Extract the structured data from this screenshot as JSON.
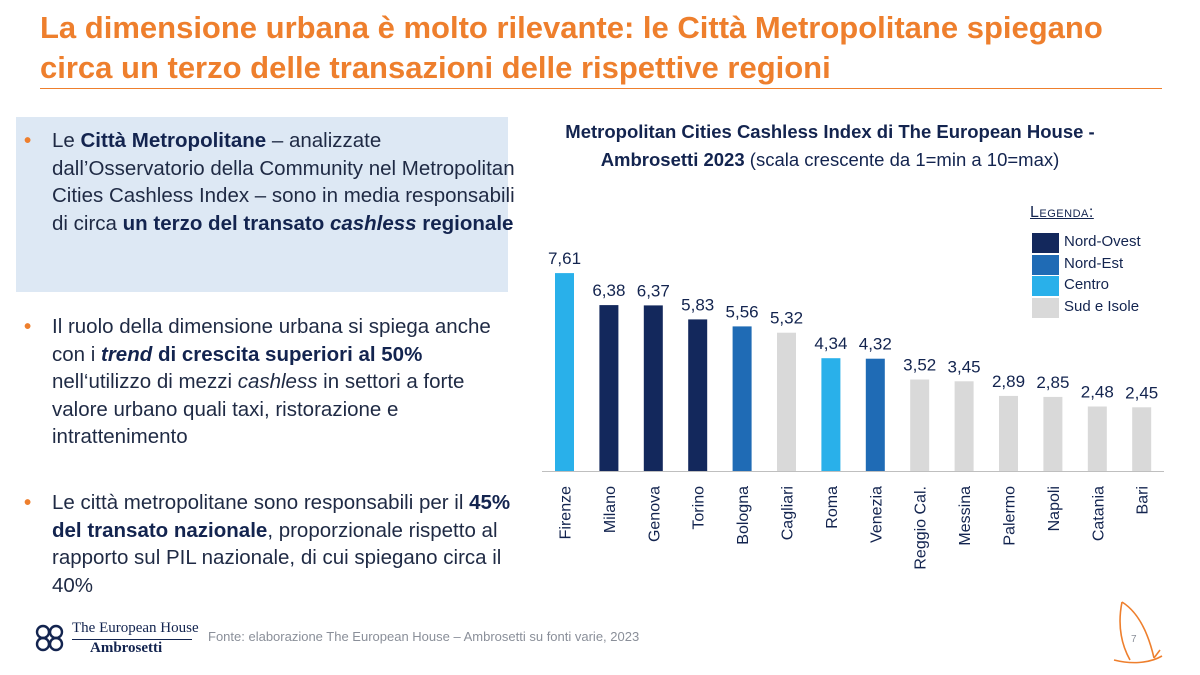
{
  "title": "La dimensione urbana è molto rilevante: le Città Metropolitane spiegano circa un terzo delle transazioni delle rispettive regioni",
  "bullets": {
    "b1": {
      "p1": "Le ",
      "p2": "Città Metropolitane",
      "p3": " – analizzate dall’Osservatorio della Community nel Metropolitan Cities Cashless Index – sono in media responsabili di circa ",
      "p4": "un terzo del transato ",
      "p5": "cashless",
      "p6": " regionale"
    },
    "b2": {
      "p1": "Il ruolo della dimensione urbana si spiega anche con i ",
      "p2": "trend",
      "p3": " di crescita superiori al 50%",
      "p4": " nell‘utilizzo di mezzi ",
      "p5": "cashless",
      "p6": " in settori a forte valore urbano quali taxi, ristorazione e intrattenimento"
    },
    "b3": {
      "p1": "Le città metropolitane sono responsabili per il ",
      "p2": "45% del transato nazionale",
      "p3": ", proporzionale rispetto al rapporto sul PIL nazionale, di cui spiegano circa il 40%"
    }
  },
  "chart_data": {
    "type": "bar",
    "title": "Metropolitan Cities Cashless Index di The European House - Ambrosetti 2023",
    "subtitle": "(scala crescente da 1=min a 10=max)",
    "categories": [
      "Firenze",
      "Milano",
      "Genova",
      "Torino",
      "Bologna",
      "Cagliari",
      "Roma",
      "Venezia",
      "Reggio Cal.",
      "Messina",
      "Palermo",
      "Napoli",
      "Catania",
      "Bari"
    ],
    "values": [
      7.61,
      6.38,
      6.37,
      5.83,
      5.56,
      5.32,
      4.34,
      4.32,
      3.52,
      3.45,
      2.89,
      2.85,
      2.48,
      2.45
    ],
    "value_labels": [
      "7,61",
      "6,38",
      "6,37",
      "5,83",
      "5,56",
      "5,32",
      "4,34",
      "4,32",
      "3,52",
      "3,45",
      "2,89",
      "2,85",
      "2,48",
      "2,45"
    ],
    "groups": [
      "Centro",
      "Nord-Ovest",
      "Nord-Ovest",
      "Nord-Ovest",
      "Nord-Est",
      "Sud e Isole",
      "Centro",
      "Nord-Est",
      "Sud e Isole",
      "Sud e Isole",
      "Sud e Isole",
      "Sud e Isole",
      "Sud e Isole",
      "Sud e Isole"
    ],
    "ylim": [
      0,
      10
    ],
    "grid": false,
    "legend": {
      "title": "Legenda:",
      "placement": "top-right",
      "items": [
        {
          "name": "Nord-Ovest",
          "color": "#13285c"
        },
        {
          "name": "Nord-Est",
          "color": "#1f6bb5"
        },
        {
          "name": "Centro",
          "color": "#29b0ea"
        },
        {
          "name": "Sud e Isole",
          "color": "#d9d9d9"
        }
      ]
    }
  },
  "footer": {
    "logo_line1": "The European House",
    "logo_line2": "Ambrosetti",
    "source": "Fonte: elaborazione The European House – Ambrosetti su fonti varie, 2023",
    "page_number": "7"
  },
  "colors": {
    "accent": "#ee7f2d",
    "navy": "#13244f",
    "highlight_bg": "#dde8f4"
  }
}
